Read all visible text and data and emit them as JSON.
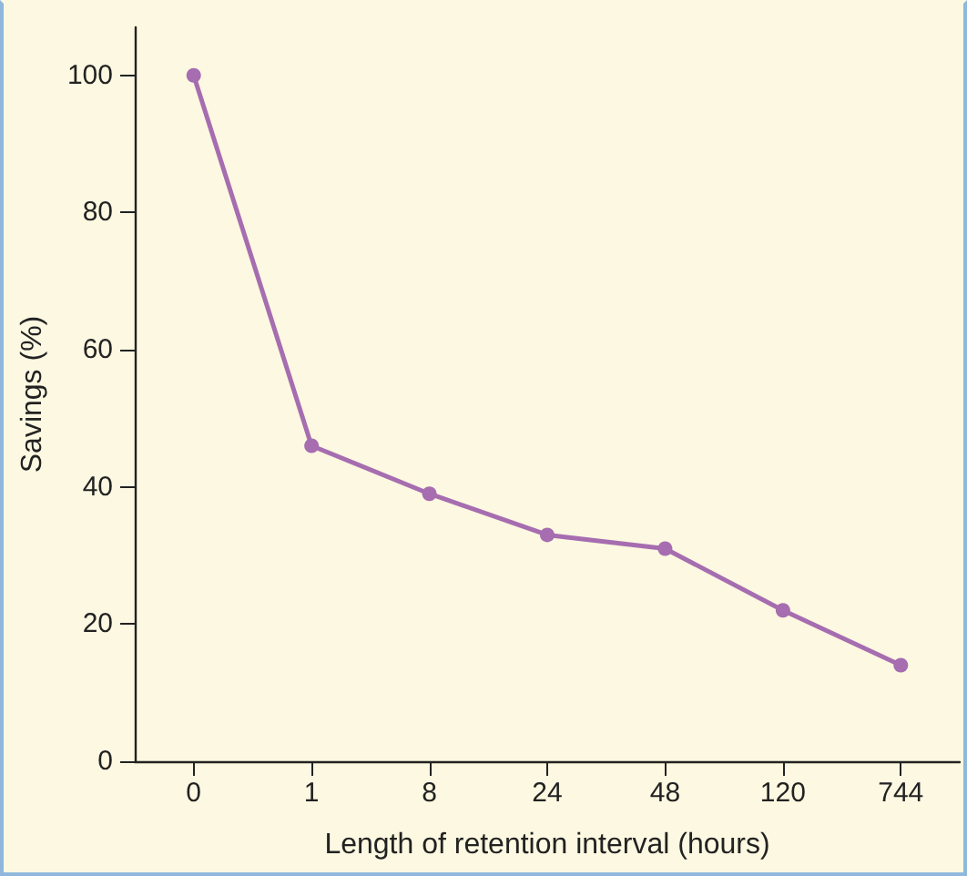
{
  "chart_data": {
    "type": "line",
    "xlabel": "Length of retention interval (hours)",
    "ylabel": "Savings (%)",
    "categories": [
      "0",
      "1",
      "8",
      "24",
      "48",
      "120",
      "744"
    ],
    "series": [
      {
        "color": "#a66db0",
        "values": [
          100,
          46,
          39,
          33,
          31,
          22,
          14
        ]
      }
    ],
    "ylim": [
      0,
      107
    ],
    "yticks": [
      0,
      20,
      40,
      60,
      80,
      100
    ],
    "grid": false,
    "marker": "circle",
    "line_style": "solid"
  }
}
